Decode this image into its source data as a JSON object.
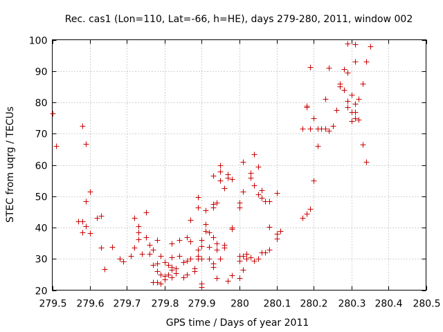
{
  "chart_data": {
    "type": "scatter",
    "title": "Rec. cas1 (Lon=110, Lat=-66, h=HE), days 279-280, 2011, window 002",
    "xlabel": "GPS time / Days of year 2011",
    "ylabel": "STEC from uqrg / TECUs",
    "xlim": [
      279.5,
      280.5
    ],
    "ylim": [
      20,
      100
    ],
    "xticks": [
      279.5,
      279.6,
      279.7,
      279.8,
      279.9,
      280,
      280.1,
      280.2,
      280.3,
      280.4,
      280.5
    ],
    "xtick_labels": [
      "279.5",
      "279.6",
      "279.7",
      "279.8",
      "279.9",
      "280",
      "280.1",
      "280.2",
      "280.3",
      "280.4",
      "280.5"
    ],
    "yticks": [
      20,
      30,
      40,
      50,
      60,
      70,
      80,
      90,
      100
    ],
    "ytick_labels": [
      "20",
      "30",
      "40",
      "50",
      "60",
      "70",
      "80",
      "90",
      "100"
    ],
    "grid": true,
    "marker": "+",
    "color": "#c80000",
    "points": [
      [
        279.5,
        76.5
      ],
      [
        279.51,
        66.0
      ],
      [
        279.57,
        42.0
      ],
      [
        279.58,
        72.5
      ],
      [
        279.58,
        42.0
      ],
      [
        279.58,
        38.5
      ],
      [
        279.59,
        66.8
      ],
      [
        279.59,
        48.5
      ],
      [
        279.59,
        40.5
      ],
      [
        279.6,
        51.5
      ],
      [
        279.6,
        38.2
      ],
      [
        279.62,
        43.0
      ],
      [
        279.63,
        43.8
      ],
      [
        279.63,
        33.5
      ],
      [
        279.64,
        26.8
      ],
      [
        279.66,
        33.8
      ],
      [
        279.68,
        30.0
      ],
      [
        279.69,
        29.2
      ],
      [
        279.71,
        31.0
      ],
      [
        279.72,
        43.0
      ],
      [
        279.72,
        33.5
      ],
      [
        279.73,
        40.5
      ],
      [
        279.73,
        38.5
      ],
      [
        279.73,
        36.2
      ],
      [
        279.74,
        31.5
      ],
      [
        279.75,
        44.8
      ],
      [
        279.75,
        37.0
      ],
      [
        279.76,
        34.5
      ],
      [
        279.76,
        31.5
      ],
      [
        279.77,
        33.0
      ],
      [
        279.77,
        28.0
      ],
      [
        279.77,
        22.5
      ],
      [
        279.78,
        36.0
      ],
      [
        279.78,
        28.5
      ],
      [
        279.78,
        26.0
      ],
      [
        279.78,
        22.5
      ],
      [
        279.79,
        31.0
      ],
      [
        279.79,
        25.0
      ],
      [
        279.79,
        22.0
      ],
      [
        279.8,
        29.0
      ],
      [
        279.8,
        24.5
      ],
      [
        279.8,
        23.5
      ],
      [
        279.81,
        28.0
      ],
      [
        279.81,
        25.0
      ],
      [
        279.82,
        35.0
      ],
      [
        279.82,
        30.5
      ],
      [
        279.82,
        27.5
      ],
      [
        279.82,
        26.5
      ],
      [
        279.82,
        24.0
      ],
      [
        279.83,
        27.0
      ],
      [
        279.83,
        25.5
      ],
      [
        279.84,
        36.0
      ],
      [
        279.84,
        31.0
      ],
      [
        279.85,
        29.0
      ],
      [
        279.85,
        24.0
      ],
      [
        279.86,
        37.0
      ],
      [
        279.86,
        29.5
      ],
      [
        279.86,
        25.0
      ],
      [
        279.87,
        42.5
      ],
      [
        279.87,
        35.5
      ],
      [
        279.87,
        30.0
      ],
      [
        279.88,
        27.0
      ],
      [
        279.88,
        26.0
      ],
      [
        279.89,
        49.8
      ],
      [
        279.89,
        46.5
      ],
      [
        279.89,
        33.0
      ],
      [
        279.89,
        31.0
      ],
      [
        279.89,
        30.0
      ],
      [
        279.9,
        36.0
      ],
      [
        279.9,
        34.0
      ],
      [
        279.9,
        30.0
      ],
      [
        279.9,
        22.0
      ],
      [
        279.9,
        21.0
      ],
      [
        279.91,
        45.5
      ],
      [
        279.91,
        41.0
      ],
      [
        279.91,
        39.0
      ],
      [
        279.92,
        38.5
      ],
      [
        279.92,
        33.8
      ],
      [
        279.92,
        30.0
      ],
      [
        279.93,
        56.5
      ],
      [
        279.93,
        47.5
      ],
      [
        279.93,
        46.5
      ],
      [
        279.93,
        37.0
      ],
      [
        279.93,
        28.5
      ],
      [
        279.93,
        27.5
      ],
      [
        279.94,
        48.0
      ],
      [
        279.94,
        35.0
      ],
      [
        279.94,
        33.0
      ],
      [
        279.94,
        23.8
      ],
      [
        279.95,
        60.0
      ],
      [
        279.95,
        58.0
      ],
      [
        279.95,
        55.0
      ],
      [
        279.95,
        30.0
      ],
      [
        279.96,
        52.5
      ],
      [
        279.96,
        34.5
      ],
      [
        279.96,
        33.5
      ],
      [
        279.97,
        57.0
      ],
      [
        279.97,
        56.0
      ],
      [
        279.97,
        23.0
      ],
      [
        279.98,
        55.5
      ],
      [
        279.98,
        40.0
      ],
      [
        279.98,
        39.5
      ],
      [
        279.98,
        24.8
      ],
      [
        280.0,
        48.0
      ],
      [
        280.0,
        46.5
      ],
      [
        280.0,
        31.0
      ],
      [
        280.0,
        29.5
      ],
      [
        280.0,
        23.8
      ],
      [
        280.01,
        61.0
      ],
      [
        280.01,
        51.5
      ],
      [
        280.01,
        31.0
      ],
      [
        280.01,
        26.5
      ],
      [
        280.02,
        31.5
      ],
      [
        280.02,
        30.0
      ],
      [
        280.03,
        57.5
      ],
      [
        280.03,
        56.0
      ],
      [
        280.03,
        30.5
      ],
      [
        280.04,
        63.5
      ],
      [
        280.04,
        53.5
      ],
      [
        280.04,
        29.5
      ],
      [
        280.05,
        59.5
      ],
      [
        280.05,
        50.5
      ],
      [
        280.05,
        30.0
      ],
      [
        280.06,
        52.0
      ],
      [
        280.06,
        49.5
      ],
      [
        280.06,
        32.0
      ],
      [
        280.07,
        48.5
      ],
      [
        280.07,
        32.0
      ],
      [
        280.08,
        48.5
      ],
      [
        280.08,
        40.2
      ],
      [
        280.08,
        33.0
      ],
      [
        280.1,
        51.0
      ],
      [
        280.1,
        38.0
      ],
      [
        280.1,
        36.5
      ],
      [
        280.11,
        38.8
      ],
      [
        280.17,
        71.5
      ],
      [
        280.17,
        43.0
      ],
      [
        280.18,
        79.0
      ],
      [
        280.18,
        78.5
      ],
      [
        280.18,
        44.5
      ],
      [
        280.19,
        91.3
      ],
      [
        280.19,
        71.5
      ],
      [
        280.19,
        46.0
      ],
      [
        280.2,
        75.0
      ],
      [
        280.2,
        55.0
      ],
      [
        280.21,
        71.5
      ],
      [
        280.21,
        66.0
      ],
      [
        280.22,
        71.5
      ],
      [
        280.23,
        81.0
      ],
      [
        280.23,
        71.5
      ],
      [
        280.24,
        91.0
      ],
      [
        280.24,
        71.0
      ],
      [
        280.25,
        72.5
      ],
      [
        280.26,
        77.5
      ],
      [
        280.27,
        86.0
      ],
      [
        280.27,
        85.0
      ],
      [
        280.28,
        90.5
      ],
      [
        280.28,
        84.0
      ],
      [
        280.29,
        98.8
      ],
      [
        280.29,
        89.5
      ],
      [
        280.29,
        80.5
      ],
      [
        280.29,
        78.5
      ],
      [
        280.3,
        82.5
      ],
      [
        280.3,
        77.0
      ],
      [
        280.3,
        74.0
      ],
      [
        280.31,
        98.5
      ],
      [
        280.31,
        93.0
      ],
      [
        280.31,
        79.5
      ],
      [
        280.31,
        77.0
      ],
      [
        280.31,
        75.0
      ],
      [
        280.32,
        81.0
      ],
      [
        280.32,
        74.5
      ],
      [
        280.33,
        86.0
      ],
      [
        280.33,
        66.5
      ],
      [
        280.34,
        93.0
      ],
      [
        280.34,
        61.0
      ],
      [
        280.35,
        98.0
      ]
    ]
  }
}
